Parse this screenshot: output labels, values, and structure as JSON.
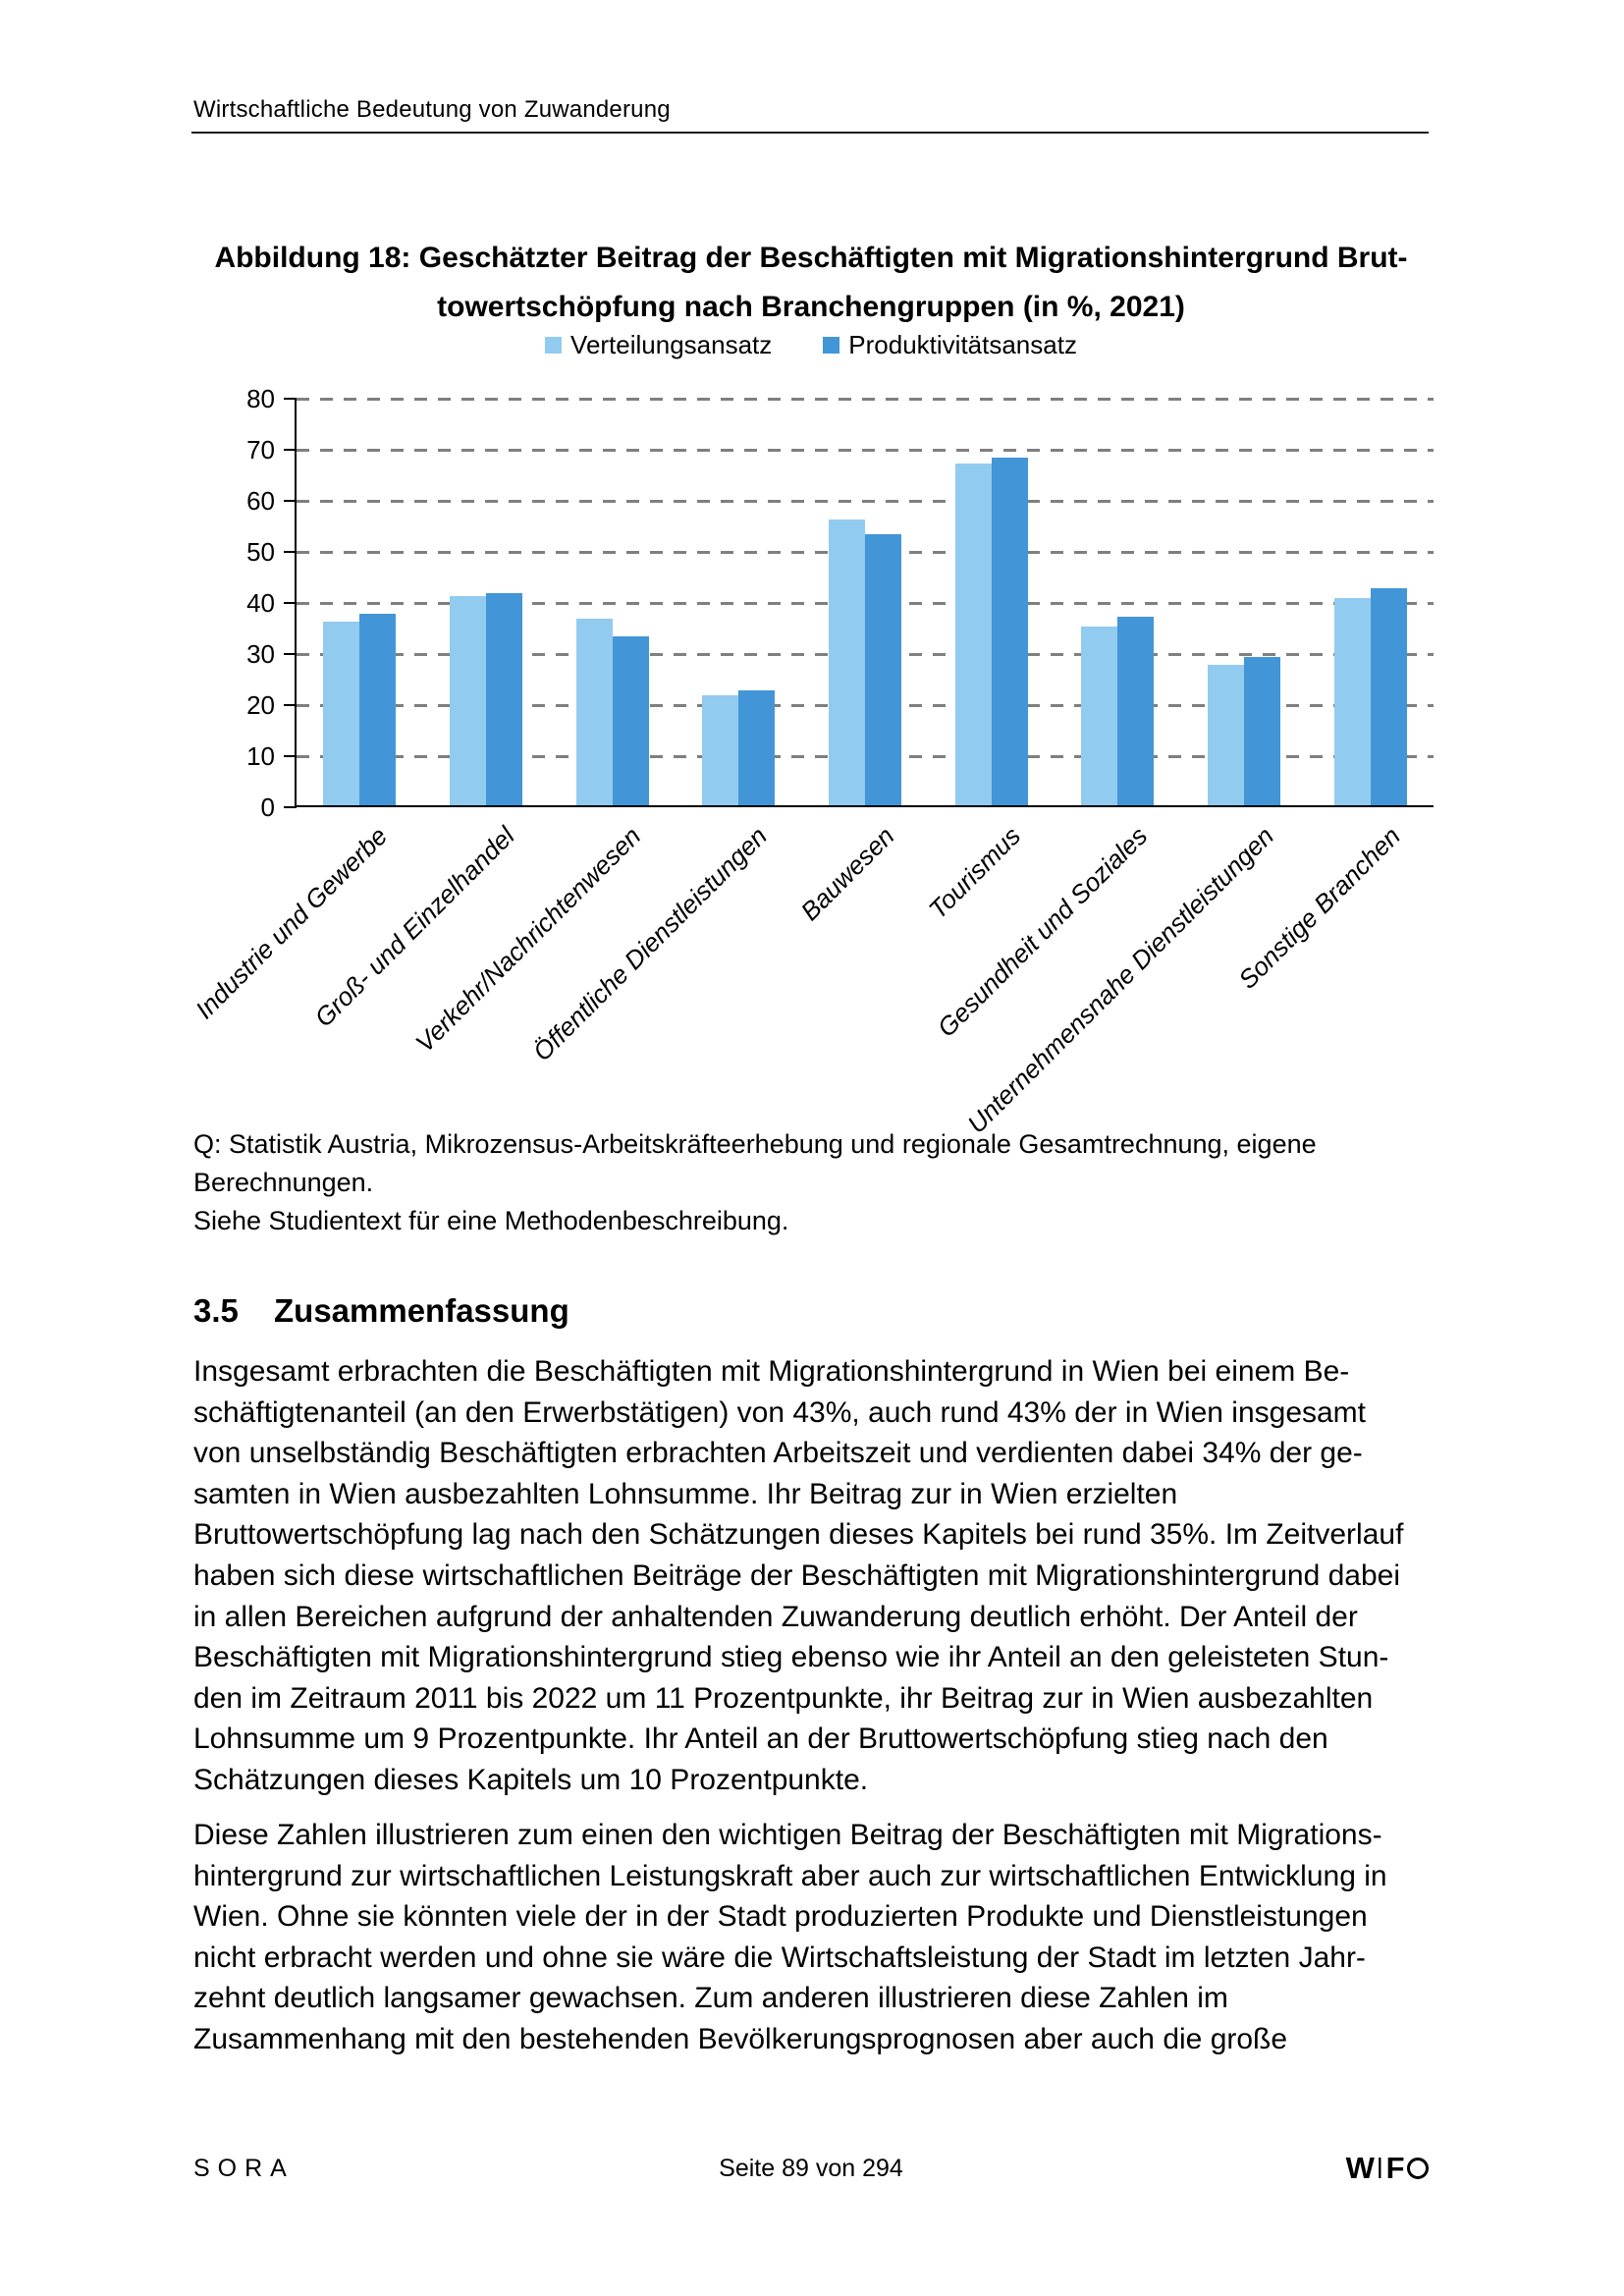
{
  "page": {
    "running_header": "Wirtschaftliche Bedeutung von Zuwanderung"
  },
  "figure": {
    "title_lines": [
      "Abbildung 18: Geschätzter Beitrag der Beschäftigten mit Migrationshintergrund Brut-",
      "towertschöpfung nach Branchengruppen (in %, 2021)"
    ],
    "source_lines": [
      "Q: Statistik Austria, Mikrozensus-Arbeitskräfteerhebung und regionale Gesamtrechnung, eigene Berechnungen.",
      "Siehe Studientext für eine Methodenbeschreibung."
    ]
  },
  "chart_data": {
    "type": "bar",
    "title": "Geschätzter Beitrag der Beschäftigten mit Migrationshintergrund Bruttowertschöpfung nach Branchengruppen (in %, 2021)",
    "categories": [
      "Industrie und Gewerbe",
      "Groß- und Einzelhandel",
      "Verkehr/Nachrichtenwesen",
      "Öffentliche Dienstleistungen",
      "Bauwesen",
      "Tourismus",
      "Gesundheit und Soziales",
      "Unternehmensnahe Dienstleistungen",
      "Sonstige Branchen"
    ],
    "series": [
      {
        "name": "Verteilungsansatz",
        "color": "#92CBF0",
        "values": [
          36,
          41,
          36.5,
          21.5,
          56,
          67,
          35,
          27.5,
          40.5
        ]
      },
      {
        "name": "Produktivitätsansatz",
        "color": "#4296D7",
        "values": [
          37.5,
          41.5,
          33,
          22.5,
          53,
          68,
          37,
          29,
          42.5
        ]
      }
    ],
    "ylim": [
      0,
      80
    ],
    "ytick_step": 10,
    "grid": "horizontal-dashed",
    "gridline_color": "#7f7f7f",
    "legend_position": "top-center",
    "xlabel": "",
    "ylabel": ""
  },
  "section": {
    "number": "3.5",
    "title": "Zusammenfassung"
  },
  "paragraphs": [
    {
      "lines": [
        "Insgesamt erbrachten die Beschäftigten mit Migrationshintergrund in Wien bei einem Be-",
        "schäftigtenanteil (an den Erwerbstätigen) von 43%, auch rund 43% der in Wien insgesamt",
        "von unselbständig Beschäftigten erbrachten Arbeitszeit und verdienten dabei 34% der ge-",
        "samten in Wien ausbezahlten Lohnsumme. Ihr Beitrag zur in Wien erzielten",
        "Bruttowertschöpfung lag nach den Schätzungen dieses Kapitels bei rund 35%. Im Zeitverlauf",
        "haben sich diese wirtschaftlichen Beiträge der Beschäftigten mit Migrationshintergrund dabei",
        "in allen Bereichen aufgrund der anhaltenden Zuwanderung deutlich erhöht. Der Anteil der",
        "Beschäftigten mit Migrationshintergrund stieg ebenso wie ihr Anteil an den geleisteten Stun-",
        "den im Zeitraum 2011 bis 2022 um 11 Prozentpunkte, ihr Beitrag zur in Wien ausbezahlten",
        "Lohnsumme um 9 Prozentpunkte. Ihr Anteil an der Bruttowertschöpfung stieg nach den",
        "Schätzungen dieses Kapitels um 10 Prozentpunkte."
      ]
    },
    {
      "lines": [
        "Diese Zahlen illustrieren zum einen den wichtigen Beitrag der Beschäftigten mit Migrations-",
        "hintergrund zur wirtschaftlichen Leistungskraft aber auch zur wirtschaftlichen Entwicklung in",
        "Wien. Ohne sie könnten viele der in der Stadt produzierten Produkte und Dienstleistungen",
        "nicht erbracht werden und ohne sie wäre die Wirtschaftsleistung der Stadt im letzten Jahr-",
        "zehnt deutlich langsamer gewachsen. Zum anderen illustrieren diese Zahlen im",
        "Zusammenhang mit den bestehenden Bevölkerungsprognosen aber auch die große"
      ]
    }
  ],
  "footer": {
    "left": "SORA",
    "center": "Seite 89 von 294",
    "logo": "WIFO"
  }
}
